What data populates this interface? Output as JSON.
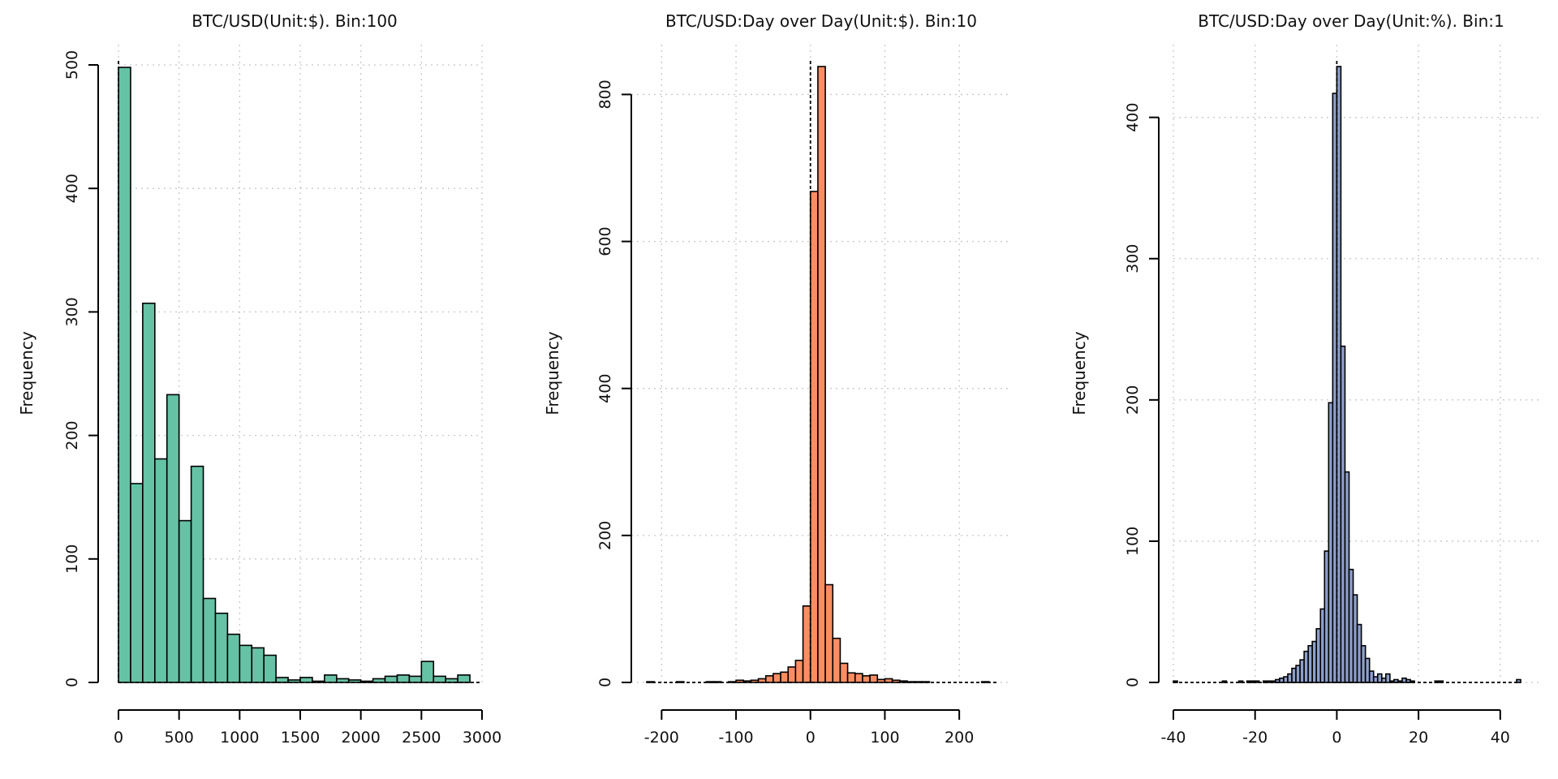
{
  "chart_data": [
    {
      "type": "bar",
      "title": "BTC/USD(Unit:$). Bin:100",
      "xlabel": "",
      "ylabel": "Frequency",
      "color": "#66c2a5",
      "bin_width": 100,
      "bin_start": 0,
      "values": [
        498,
        161,
        307,
        181,
        233,
        131,
        175,
        68,
        56,
        39,
        30,
        28,
        22,
        4,
        2,
        4,
        1,
        6,
        3,
        2,
        1,
        3,
        5,
        6,
        5,
        17,
        5,
        3,
        6
      ],
      "xlim": [
        0,
        3000
      ],
      "ylim": [
        0,
        500
      ],
      "xticks": [
        0,
        500,
        1000,
        1500,
        2000,
        2500,
        3000
      ],
      "yticks": [
        0,
        100,
        200,
        300,
        400,
        500
      ],
      "grid": true
    },
    {
      "type": "bar",
      "title": "BTC/USD:Day over Day(Unit:$). Bin:10",
      "xlabel": "",
      "ylabel": "Frequency",
      "color": "#fc8d62",
      "bin_width": 10,
      "bin_start": -220,
      "values": [
        1,
        0,
        0,
        0,
        1,
        0,
        0,
        0,
        1,
        1,
        0,
        1,
        3,
        2,
        3,
        5,
        9,
        12,
        14,
        21,
        30,
        104,
        668,
        838,
        133,
        60,
        26,
        13,
        12,
        9,
        10,
        4,
        5,
        3,
        2,
        1,
        1,
        1,
        0,
        0,
        0,
        0,
        0,
        0,
        0,
        1
      ],
      "xlim": [
        -220,
        250
      ],
      "ylim": [
        0,
        838
      ],
      "xticks": [
        -200,
        -100,
        0,
        100,
        200
      ],
      "yticks": [
        0,
        200,
        400,
        600,
        800
      ],
      "grid": true
    },
    {
      "type": "bar",
      "title": "BTC/USD:Day over Day(Unit:%). Bin:1",
      "xlabel": "",
      "ylabel": "Frequency",
      "color": "#8da0cb",
      "bin_width": 1,
      "bin_start": -40,
      "values": [
        1,
        0,
        0,
        0,
        0,
        0,
        0,
        0,
        0,
        0,
        0,
        0,
        1,
        0,
        0,
        0,
        1,
        0,
        1,
        1,
        1,
        0,
        1,
        1,
        1,
        2,
        3,
        4,
        6,
        10,
        12,
        16,
        22,
        26,
        29,
        38,
        52,
        93,
        198,
        417,
        436,
        238,
        149,
        80,
        62,
        41,
        26,
        17,
        8,
        4,
        6,
        3,
        6,
        1,
        2,
        1,
        3,
        2,
        1,
        0,
        0,
        0,
        0,
        0,
        1,
        1,
        0,
        0,
        0,
        0,
        0,
        0,
        0,
        0,
        0,
        0,
        0,
        0,
        0,
        0,
        0,
        0,
        0,
        0,
        2
      ],
      "xlim": [
        -40,
        45
      ],
      "ylim": [
        0,
        436
      ],
      "xticks": [
        -40,
        -20,
        0,
        20,
        40
      ],
      "yticks": [
        0,
        100,
        200,
        300,
        400
      ],
      "grid": true
    }
  ]
}
